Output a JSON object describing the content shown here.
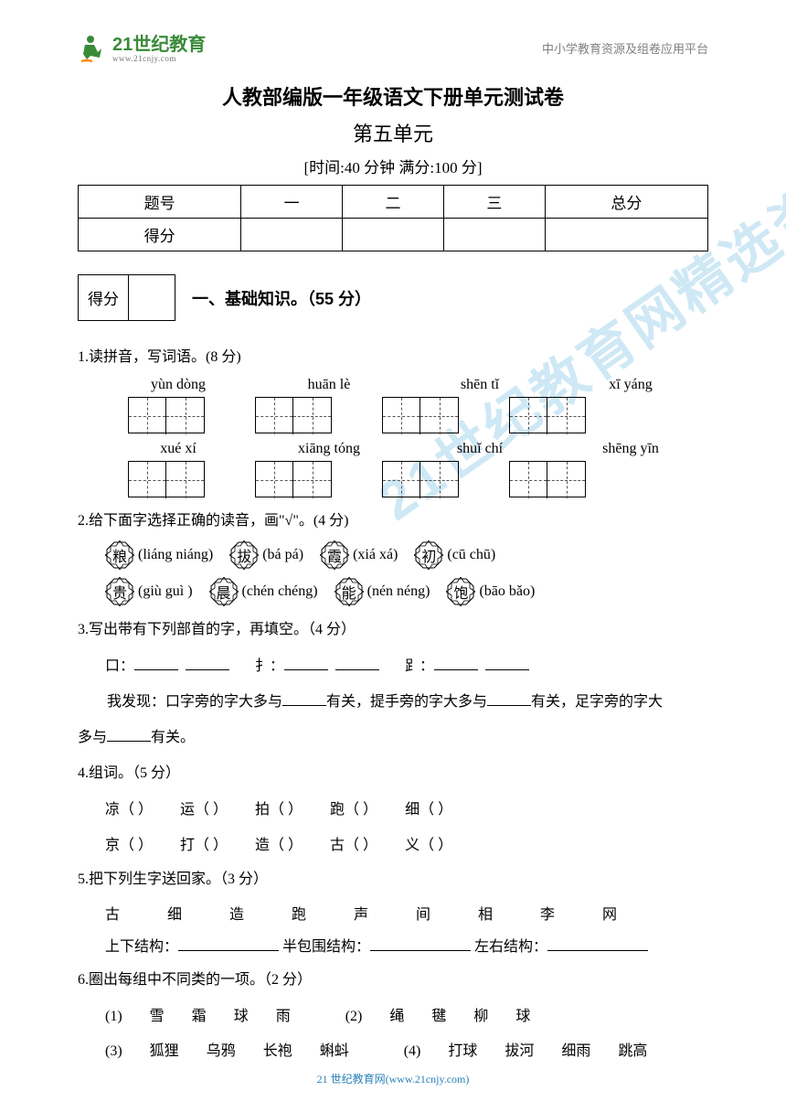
{
  "header": {
    "logo_main": "21世纪教育",
    "logo_sub": "www.21cnjy.com",
    "right_text": "中小学教育资源及组卷应用平台"
  },
  "title": "人教部编版一年级语文下册单元测试卷",
  "subtitle": "第五单元",
  "time_score": "[时间:40 分钟    满分:100 分]",
  "score_table": {
    "row1": [
      "题号",
      "一",
      "二",
      "三",
      "总分"
    ],
    "row2": [
      "得分",
      "",
      "",
      "",
      ""
    ]
  },
  "section1": {
    "score_label": "得分",
    "title": "一、基础知识。（55 分）"
  },
  "q1": {
    "text": "1.读拼音，写词语。(8 分)",
    "row1": [
      "yùn dòng",
      "huān lè",
      "shēn tǐ",
      "xī yáng"
    ],
    "row2": [
      "xué  xí",
      "xiāng tóng",
      "shuǐ chí",
      "shēng yīn"
    ]
  },
  "q2": {
    "text": "2.给下面字选择正确的读音，画\"√\"。(4 分)",
    "items": [
      {
        "char": "粮",
        "opts": "(liáng  niáng)"
      },
      {
        "char": "拔",
        "opts": "(bá   pá)"
      },
      {
        "char": "霞",
        "opts": "(xiá   xá)"
      },
      {
        "char": "初",
        "opts": "(cū  chū)"
      },
      {
        "char": "贵",
        "opts": "(giù  guì )"
      },
      {
        "char": "晨",
        "opts": "(chén chéng)"
      },
      {
        "char": "能",
        "opts": "(nén néng)"
      },
      {
        "char": "饱",
        "opts": "(bāo bǎo)"
      }
    ]
  },
  "q3": {
    "text": "3.写出带有下列部首的字，再填空。（4 分）",
    "radicals": "口：___  ___          扌：___  ___          ⻊：___  ___",
    "fill1": "我发现：口字旁的字大多与",
    "fill2": "有关，提手旁的字大多与",
    "fill3": "有关，足字旁的字大",
    "fill4": "多与",
    "fill5": "有关。"
  },
  "q4": {
    "text": "4.组词。（5 分）",
    "row1": [
      "凉（       ）",
      "运（       ）",
      "拍（       ）",
      "跑（       ）",
      "细（       ）"
    ],
    "row2": [
      "京（       ）",
      "打（       ）",
      "造（       ）",
      "古（       ）",
      "义（       ）"
    ]
  },
  "q5": {
    "text": "5.把下列生字送回家。（3 分）",
    "chars": "古   细   造   跑   声   间   相   李   网",
    "structures": {
      "s1": "上下结构：",
      "s2": "半包围结构：",
      "s3": "左右结构："
    }
  },
  "q6": {
    "text": "6.圈出每组中不同类的一项。（2 分）",
    "groups": [
      {
        "n": "(1)",
        "items": [
          "雪",
          "霜",
          "球",
          "雨"
        ]
      },
      {
        "n": "(2)",
        "items": [
          "绳",
          "毽",
          "柳",
          "球"
        ]
      },
      {
        "n": "(3)",
        "items": [
          "狐狸",
          "乌鸦",
          "长袍",
          "蝌蚪"
        ]
      },
      {
        "n": "(4)",
        "items": [
          "打球",
          "拔河",
          "细雨",
          "跳高"
        ]
      }
    ]
  },
  "footer": "21 世纪教育网(www.21cnjy.com)",
  "colors": {
    "watermark": "#44a8d8",
    "logo_green": "#3a8a3a",
    "header_gray": "#808080",
    "footer_blue": "#2a80b9",
    "text": "#000000",
    "bg": "#ffffff"
  }
}
